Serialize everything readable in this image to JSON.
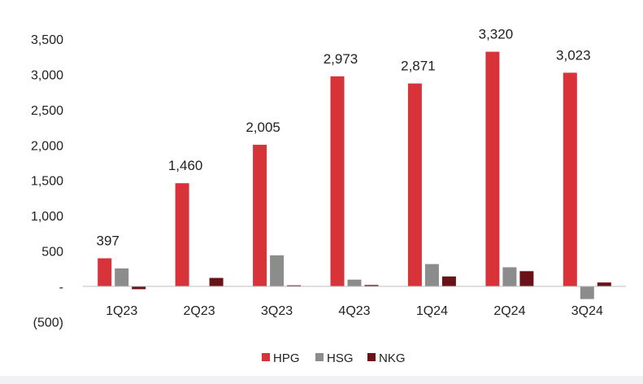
{
  "chart_data": {
    "type": "bar",
    "categories": [
      "1Q23",
      "2Q23",
      "3Q23",
      "4Q23",
      "1Q24",
      "2Q24",
      "3Q24"
    ],
    "series": [
      {
        "name": "HPG",
        "color": "#d9333a",
        "values": [
          397,
          1460,
          2005,
          2973,
          2871,
          3320,
          3023
        ]
      },
      {
        "name": "HSG",
        "color": "#8c8c8c",
        "values": [
          255,
          5,
          440,
          95,
          315,
          270,
          -180
        ]
      },
      {
        "name": "NKG",
        "color": "#6b1219",
        "values": [
          -40,
          120,
          15,
          20,
          140,
          215,
          55
        ]
      }
    ],
    "data_labels_series": "HPG",
    "data_labels": [
      "397",
      "1,460",
      "2,005",
      "2,973",
      "2,871",
      "3,320",
      "3,023"
    ],
    "yticks": [
      -500,
      0,
      500,
      1000,
      1500,
      2000,
      2500,
      3000,
      3500
    ],
    "ytick_labels": [
      "(500)",
      "-",
      "500",
      "1,000",
      "1,500",
      "2,000",
      "2,500",
      "3,000",
      "3,500"
    ],
    "ylim": [
      -500,
      3500
    ],
    "grid": false,
    "legend_position": "bottom-center",
    "title": "",
    "xlabel": "",
    "ylabel": ""
  }
}
